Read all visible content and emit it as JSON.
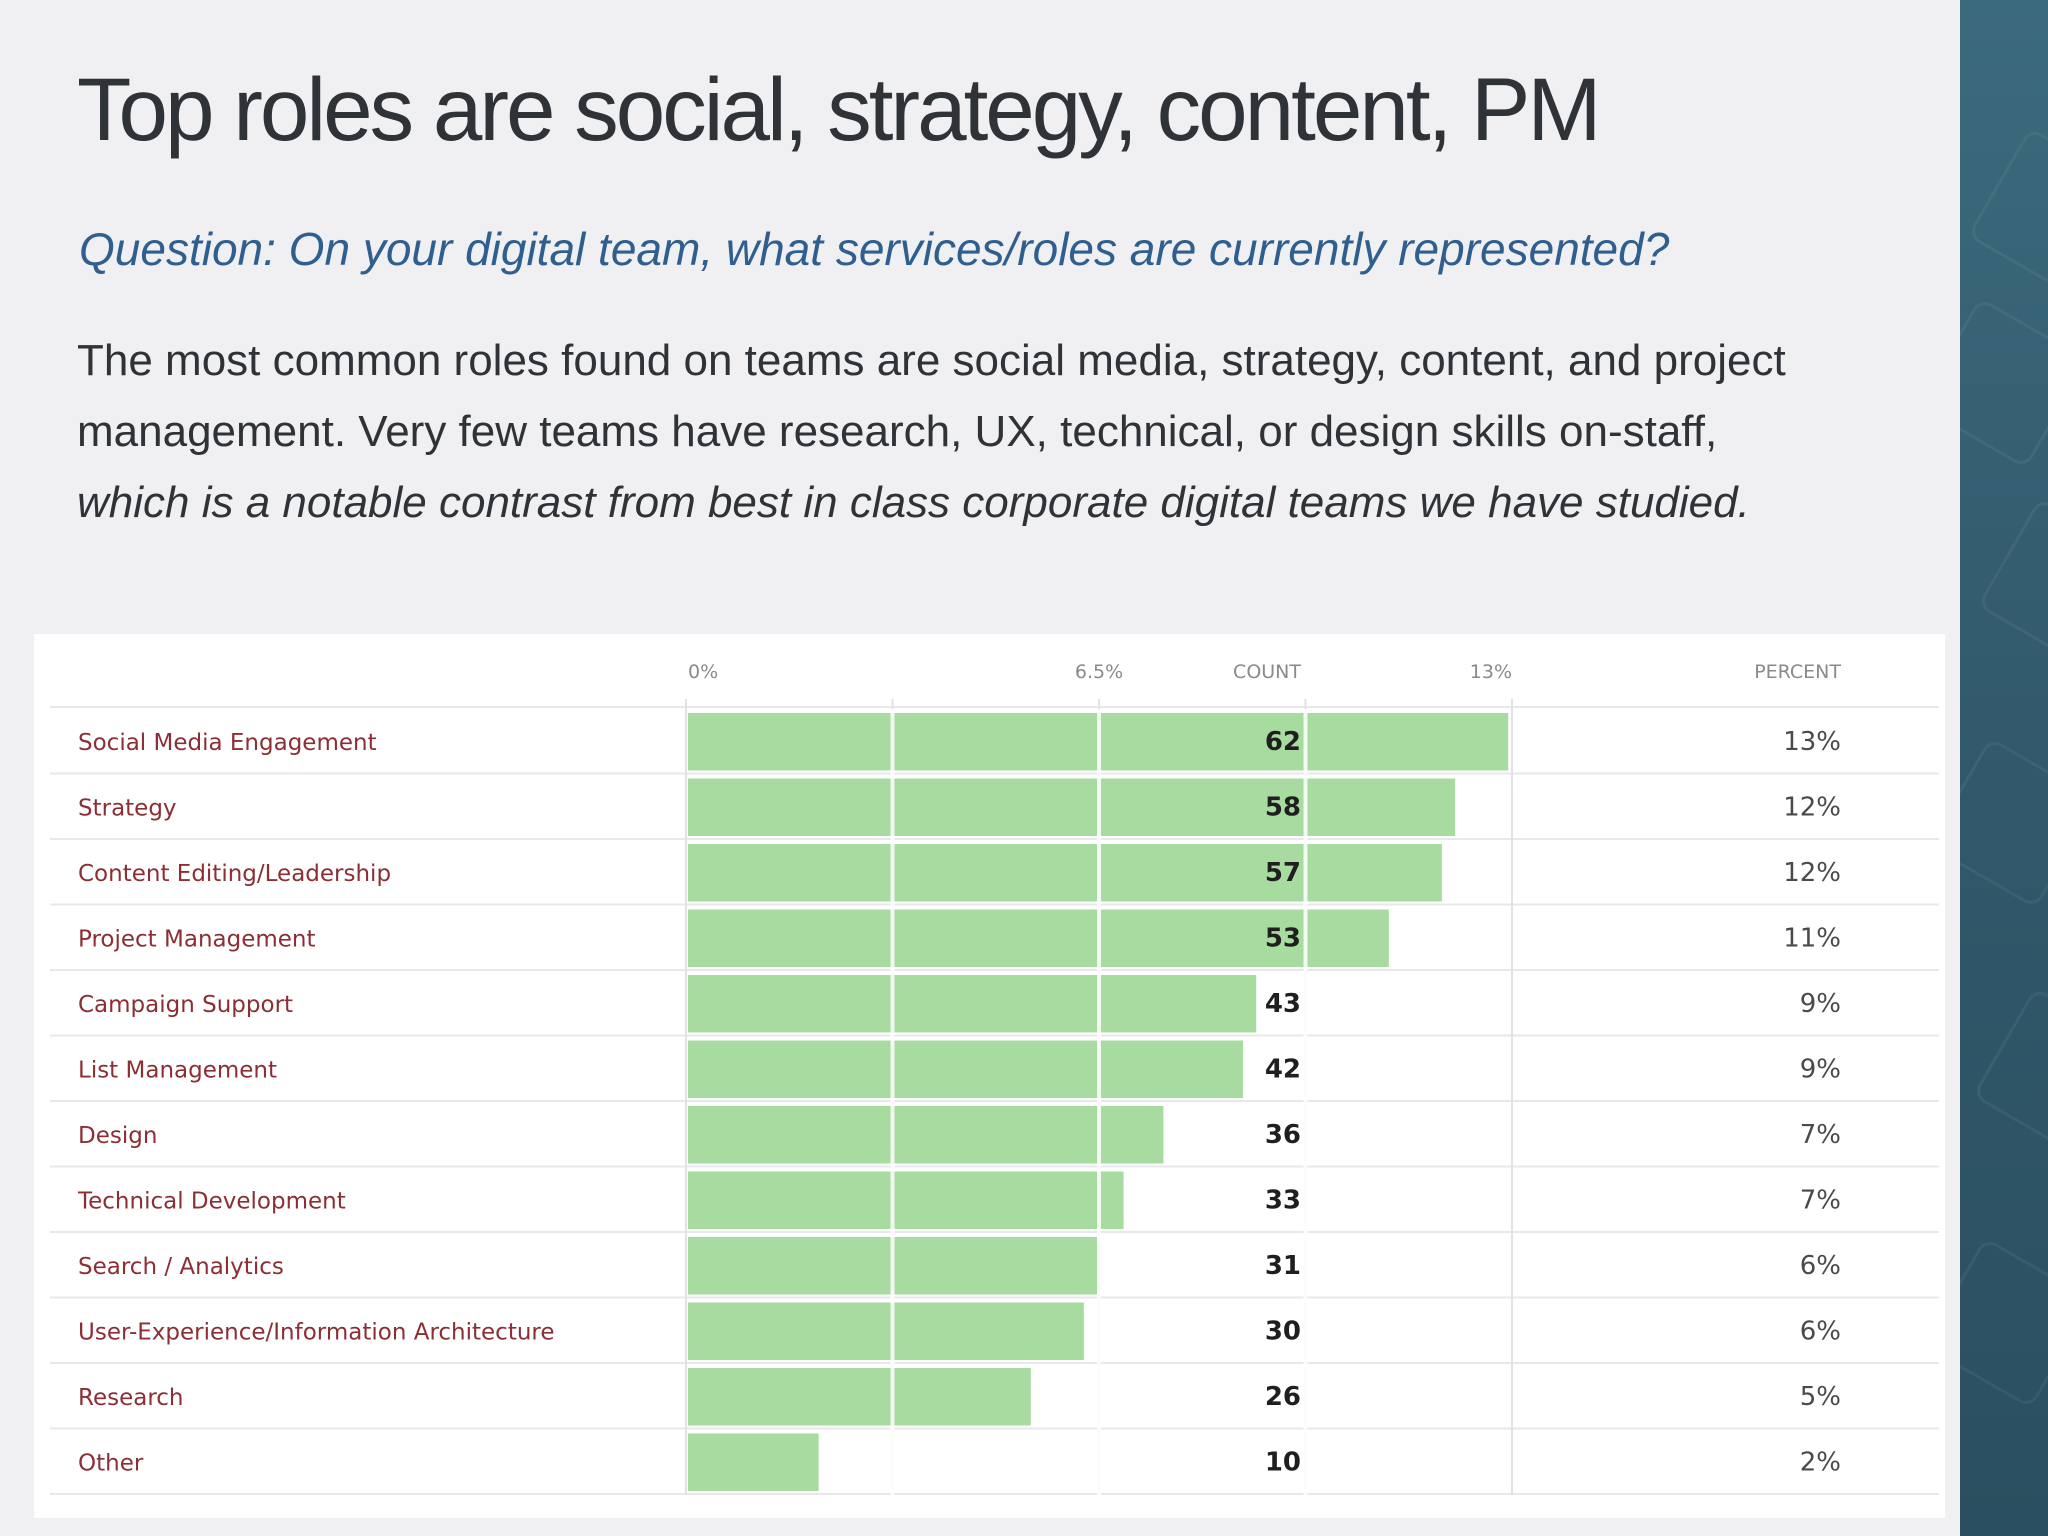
{
  "slide": {
    "title": "Top roles are social, strategy, content, PM",
    "question": "Question: On your digital team, what services/roles are currently represented?",
    "body_plain": "The most common roles found on teams are social media, strategy, content, and project management. Very few teams have research, UX, technical, or design skills on-staff, ",
    "body_italic": "which is a notable contrast from best in class corporate digital teams we have studied.",
    "colors": {
      "background": "#f0f0f3",
      "sidebar": "#31596b",
      "title": "#2f3337",
      "question": "#2f5f8f"
    }
  },
  "chart_data": {
    "type": "bar",
    "orientation": "horizontal",
    "categories": [
      "Social Media Engagement",
      "Strategy",
      "Content Editing/Leadership",
      "Project Management",
      "Campaign Support",
      "List Management",
      "Design",
      "Technical Development",
      "Search / Analytics",
      "User-Experience/Information Architecture",
      "Research",
      "Other"
    ],
    "values": [
      62,
      58,
      57,
      53,
      43,
      42,
      36,
      33,
      31,
      30,
      26,
      10
    ],
    "percent_labels": [
      "13%",
      "12%",
      "12%",
      "11%",
      "9%",
      "9%",
      "7%",
      "7%",
      "6%",
      "6%",
      "5%",
      "2%"
    ],
    "axis": {
      "tick_labels": [
        "0%",
        "6.5%",
        "13%"
      ],
      "range": [
        0,
        13
      ]
    },
    "column_headers": {
      "count": "COUNT",
      "percent": "PERCENT"
    },
    "bar_color": "#a8dba0",
    "label_color": "#8b2f35",
    "grid": true
  }
}
